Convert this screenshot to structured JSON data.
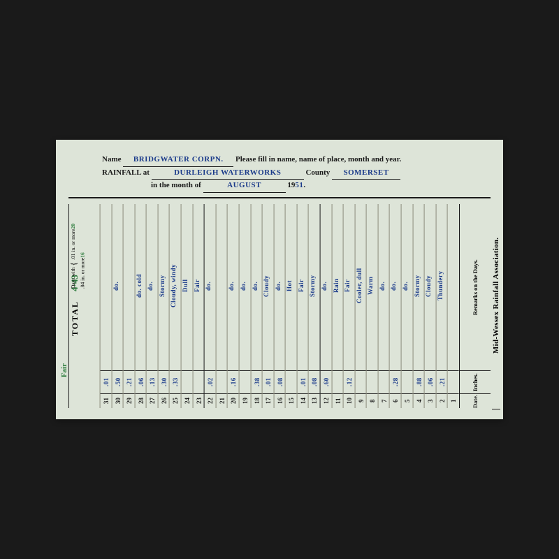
{
  "association": "Mid-Wessex Rainfall Association.",
  "header": {
    "name_label": "Name",
    "name_value": "BRIDGWATER CORPN.",
    "instruction": "Please fill in name, name of place, month and year.",
    "rainfall_label": "RAINFALL at",
    "place_value": "DURLEIGH WATERWORKS",
    "county_label": "County",
    "county_value": "SOMERSET",
    "month_label": "in the month of",
    "month_value": "AUGUST",
    "year_prefix": "19",
    "year_value": "51"
  },
  "columns": {
    "date": "Date.",
    "inches": "Inches.",
    "remarks": "Remarks on the Days."
  },
  "total": {
    "label": "TOTAL",
    "value": "4·43",
    "days_label": "Days with",
    "line1": ".01 in. or more",
    "line2": ".04 in. or more",
    "val1": "20",
    "val2": "16",
    "fair": "Fair"
  },
  "days": [
    {
      "d": "1",
      "in": "",
      "r": ""
    },
    {
      "d": "2",
      "in": ".21",
      "r": "Thundery"
    },
    {
      "d": "3",
      "in": ".06",
      "r": "Cloudy"
    },
    {
      "d": "4",
      "in": ".88",
      "r": "Stormy"
    },
    {
      "d": "5",
      "in": "",
      "r": "do."
    },
    {
      "d": "6",
      "in": ".28",
      "r": "do."
    },
    {
      "d": "7",
      "in": "",
      "r": "do."
    },
    {
      "d": "8",
      "in": "",
      "r": "Warm"
    },
    {
      "d": "9",
      "in": "",
      "r": "Cooler, dull"
    },
    {
      "d": "10",
      "in": ".12",
      "r": "Fair"
    },
    {
      "d": "11",
      "in": "",
      "r": "Rain"
    },
    {
      "d": "12",
      "in": ".60",
      "r": "do."
    },
    {
      "d": "13",
      "in": ".08",
      "r": "Stormy"
    },
    {
      "d": "14",
      "in": ".01",
      "r": "Fair"
    },
    {
      "d": "15",
      "in": "",
      "r": "Hot"
    },
    {
      "d": "16",
      "in": ".08",
      "r": "do."
    },
    {
      "d": "17",
      "in": ".01",
      "r": "Cloudy"
    },
    {
      "d": "18",
      "in": ".38",
      "r": "do."
    },
    {
      "d": "19",
      "in": "",
      "r": "do."
    },
    {
      "d": "20",
      "in": ".16",
      "r": "do."
    },
    {
      "d": "21",
      "in": "",
      "r": ""
    },
    {
      "d": "22",
      "in": ".02",
      "r": "do."
    },
    {
      "d": "23",
      "in": "",
      "r": "Fair"
    },
    {
      "d": "24",
      "in": "",
      "r": "Dull"
    },
    {
      "d": "25",
      "in": ".33",
      "r": "Cloudy, windy"
    },
    {
      "d": "26",
      "in": ".30",
      "r": "Stormy"
    },
    {
      "d": "27",
      "in": ".13",
      "r": "do."
    },
    {
      "d": "28",
      "in": ".06",
      "r": "do. cold"
    },
    {
      "d": "29",
      "in": ".21",
      "r": ""
    },
    {
      "d": "30",
      "in": ".50",
      "r": "do."
    },
    {
      "d": "31",
      "in": ".01",
      "r": ""
    }
  ],
  "colors": {
    "card_bg": "#dde4d8",
    "ink_print": "#1a1a1a",
    "ink_blue": "#1a3a8a",
    "ink_green": "#2a7a3a",
    "page_bg": "#1a1a1a"
  }
}
